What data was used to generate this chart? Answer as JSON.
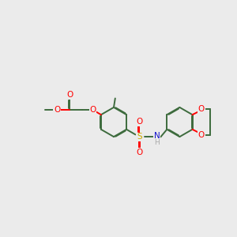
{
  "bg": "#ebebeb",
  "BC": "#3d6b3d",
  "OC": "#ff0000",
  "NC": "#1414cc",
  "SC": "#ccaa00",
  "HC": "#aaaaaa",
  "LW": 1.4,
  "FS": 7.5,
  "DBO": 0.028,
  "xlim": [
    0.0,
    10.0
  ],
  "ylim": [
    2.8,
    7.2
  ],
  "figsize": [
    3.0,
    3.0
  ],
  "dpi": 100
}
